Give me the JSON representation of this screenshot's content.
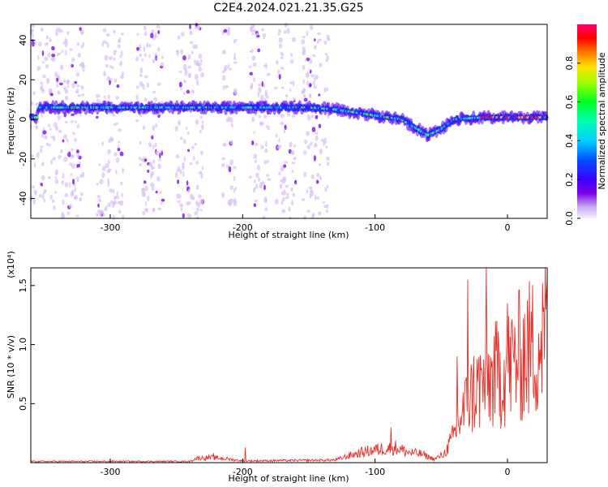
{
  "title": "C2E4.2024.021.21.35.G25",
  "colors": {
    "snr_line": "#e8312a",
    "spectrogram_background": "#ffffff"
  },
  "chart_data": [
    {
      "type": "heatmap",
      "xlabel": "Height of straight line (km)",
      "ylabel": "Frequency (Hz)",
      "xlim": [
        -360,
        30
      ],
      "ylim": [
        -50,
        48
      ],
      "xticks": [
        -300,
        -200,
        -100,
        0
      ],
      "yticks": [
        -40,
        -20,
        0,
        20,
        40
      ],
      "colorbar": {
        "label": "Normalized spectral amplitude",
        "range": [
          0,
          1
        ],
        "ticks": [
          0.0,
          0.2,
          0.4,
          0.6,
          0.8
        ],
        "colormap": "rainbow (purple-blue-cyan-green-yellow-red-magenta)"
      },
      "ridge": {
        "description_x": [
          -355,
          -250,
          -200,
          -150,
          -130,
          -100,
          -80,
          -60,
          -50,
          -40,
          -20,
          0,
          30
        ],
        "frequency_hz": [
          6,
          6,
          6,
          6,
          5,
          2,
          0,
          -8,
          -5,
          0,
          1,
          1,
          1
        ]
      },
      "noise_bands_x": [
        [
          -360,
          -320
        ],
        [
          -310,
          -290
        ],
        [
          -280,
          -260
        ],
        [
          -250,
          -240
        ],
        [
          -240,
          -230
        ],
        [
          -215,
          -205
        ],
        [
          -195,
          -180
        ],
        [
          -175,
          -160
        ],
        [
          -155,
          -135
        ]
      ]
    },
    {
      "type": "line",
      "xlabel": "Height of straight line (km)",
      "ylabel": "SNR (10 * v/v)",
      "y_multiplier": "(x10⁴)",
      "xlim": [
        -360,
        30
      ],
      "ylim": [
        0,
        1.65
      ],
      "xticks": [
        -300,
        -200,
        -100,
        0
      ],
      "yticks": [
        0.5,
        1.0,
        1.5
      ],
      "series_envelope": {
        "x": [
          -360,
          -240,
          -235,
          -225,
          -215,
          -200,
          -130,
          -120,
          -110,
          -100,
          -85,
          -75,
          -65,
          -55,
          -48,
          -42,
          -36,
          -30,
          -25,
          -20,
          -15,
          -10,
          -5,
          0,
          10,
          20,
          30
        ],
        "y": [
          0.015,
          0.015,
          0.05,
          0.06,
          0.05,
          0.02,
          0.03,
          0.08,
          0.12,
          0.15,
          0.18,
          0.12,
          0.1,
          0.04,
          0.1,
          0.25,
          0.5,
          0.7,
          0.85,
          0.9,
          0.95,
          1.0,
          1.05,
          1.1,
          1.25,
          1.35,
          1.5
        ]
      },
      "peak_points": [
        {
          "x": -222,
          "y": 0.08
        },
        {
          "x": -198,
          "y": 0.13
        },
        {
          "x": -88,
          "y": 0.3
        },
        {
          "x": -38,
          "y": 0.9
        },
        {
          "x": -30,
          "y": 1.55
        },
        {
          "x": -16,
          "y": 1.65
        },
        {
          "x": 0,
          "y": 1.35
        },
        {
          "x": 30,
          "y": 1.55
        }
      ]
    }
  ]
}
